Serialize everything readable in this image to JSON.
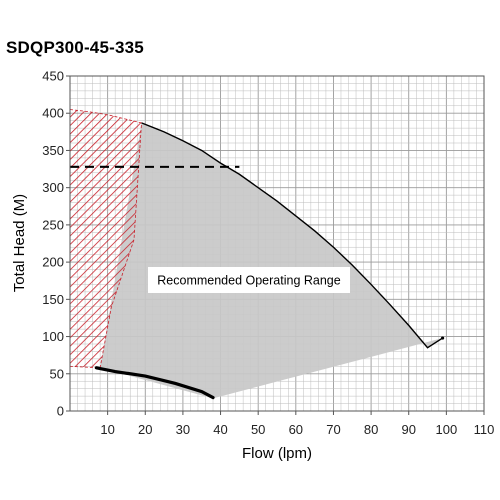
{
  "chart_data": {
    "type": "line",
    "title": "SDQP300-45-335",
    "xlabel": "Flow (lpm)",
    "ylabel": "Total Head (M)",
    "xlim": [
      0,
      110
    ],
    "ylim": [
      0,
      450
    ],
    "x_ticks": [
      10,
      20,
      30,
      40,
      50,
      60,
      70,
      80,
      90,
      100,
      110
    ],
    "y_ticks": [
      0,
      50,
      100,
      150,
      200,
      250,
      300,
      350,
      400,
      450
    ],
    "x_minor_step": 2,
    "y_minor_step": 10,
    "grid": true,
    "pump_curve": {
      "x": [
        19,
        25,
        30,
        35,
        40,
        45,
        50,
        55,
        60,
        65,
        70,
        75,
        80,
        85,
        90,
        95,
        99
      ],
      "y": [
        387,
        375,
        363,
        350,
        333,
        318,
        300,
        282,
        262,
        242,
        220,
        196,
        170,
        143,
        115,
        85,
        98
      ]
    },
    "hatched_region": {
      "x": [
        0,
        5,
        10,
        19,
        17,
        11,
        8,
        0
      ],
      "y": [
        405,
        402,
        398,
        387,
        230,
        140,
        58,
        60
      ]
    },
    "operating_region": {
      "x": [
        19,
        25,
        30,
        35,
        40,
        45,
        50,
        55,
        60,
        65,
        70,
        75,
        80,
        85,
        90,
        95,
        99,
        38,
        8
      ],
      "y": [
        387,
        375,
        363,
        350,
        333,
        318,
        300,
        282,
        262,
        242,
        220,
        196,
        170,
        143,
        115,
        85,
        98,
        17,
        58
      ]
    },
    "dashed_line": {
      "x": [
        0,
        45
      ],
      "y": [
        328,
        328
      ]
    },
    "min_flow_curve": {
      "x": [
        7,
        12,
        20,
        28,
        35,
        38
      ],
      "y": [
        58,
        53,
        47,
        37,
        26,
        18
      ]
    },
    "annotation": "Recommended Operating Range",
    "colors": {
      "operating_fill": "#c8c8c8",
      "hatch": "#c8202a",
      "curve": "#000000",
      "grid": "#bdbdbd"
    }
  }
}
